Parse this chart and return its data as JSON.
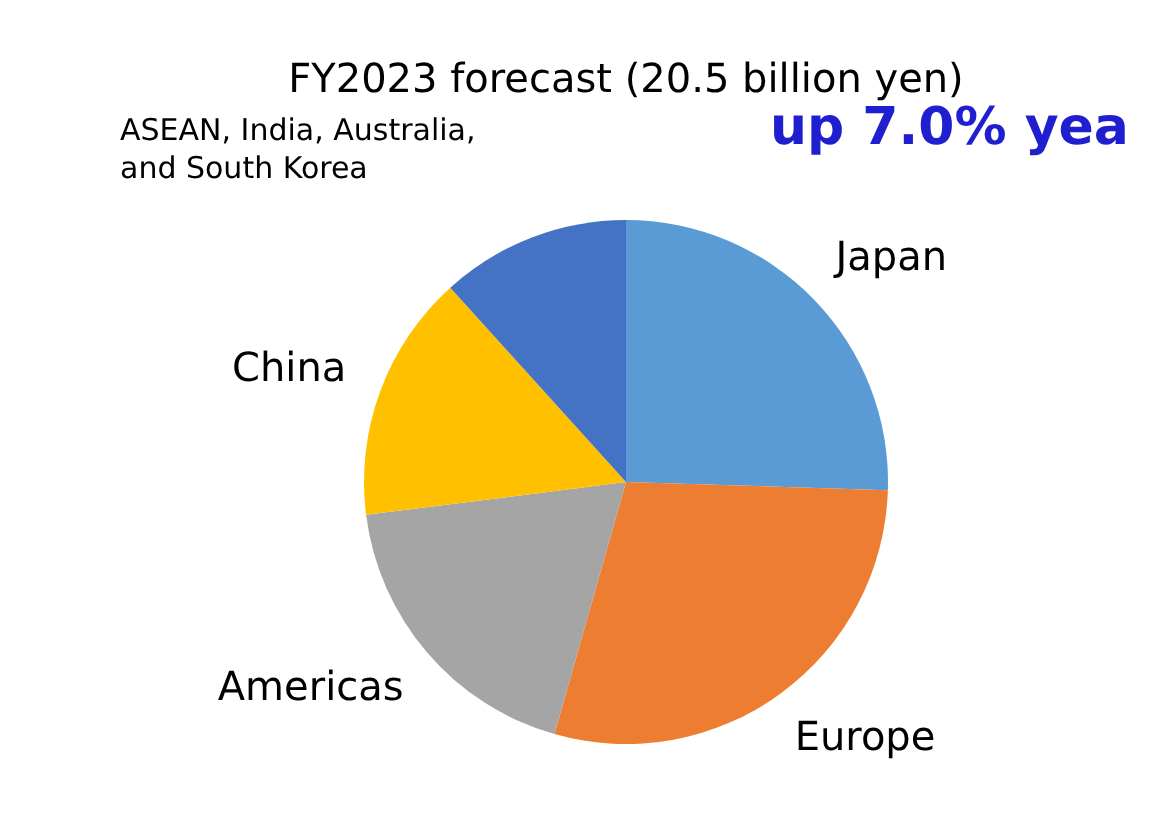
{
  "chart_data": {
    "type": "pie",
    "title": "FY2023 forecast (20.5 billion yen)",
    "categories": [
      "Japan",
      "Europe",
      "Americas",
      "China",
      "ASEAN, India, Australia, and South Korea"
    ],
    "values": [
      25.5,
      28.9,
      18.6,
      15.3,
      11.7
    ],
    "colors": [
      "#5b9bd5",
      "#ed7d31",
      "#a5a5a5",
      "#ffc000",
      "#4472c4"
    ],
    "annotations": [
      "up 7.0% yea"
    ]
  }
}
